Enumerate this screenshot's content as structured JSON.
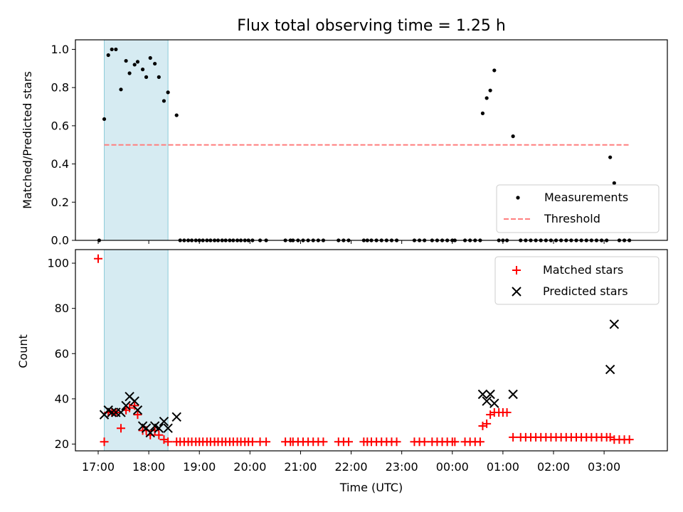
{
  "chart_data": [
    {
      "type": "scatter",
      "title": "Flux total observing time = 1.25 h",
      "ylabel": "Matched/Predicted stars",
      "xlabel": "",
      "ylim": [
        0,
        1.05
      ],
      "yticks": [
        "0.0",
        "0.2",
        "0.4",
        "0.6",
        "0.8",
        "1.0"
      ],
      "ytick_values": [
        0,
        0.2,
        0.4,
        0.6,
        0.8,
        1.0
      ],
      "highlight_span_hours": [
        17.12,
        18.38
      ],
      "threshold": {
        "name": "Threshold",
        "value": 0.5,
        "x_range": [
          17.12,
          27.5
        ],
        "color": "#ff7f7f"
      },
      "series": [
        {
          "name": "Measurements",
          "color": "#000000",
          "x": [
            17.02,
            17.12,
            17.2,
            17.27,
            17.35,
            17.45,
            17.55,
            17.62,
            17.72,
            17.78,
            17.88,
            17.95,
            18.03,
            18.12,
            18.2,
            18.3,
            18.38,
            18.55,
            18.62,
            18.7,
            18.78,
            18.85,
            18.93,
            19.0,
            19.07,
            19.15,
            19.22,
            19.3,
            19.37,
            19.45,
            19.52,
            19.6,
            19.67,
            19.75,
            19.82,
            19.9,
            19.97,
            20.05,
            20.2,
            20.32,
            20.7,
            20.8,
            20.85,
            20.95,
            21.05,
            21.15,
            21.25,
            21.35,
            21.45,
            21.75,
            21.85,
            21.95,
            22.25,
            22.32,
            22.4,
            22.5,
            22.6,
            22.7,
            22.8,
            22.9,
            23.25,
            23.35,
            23.45,
            23.6,
            23.7,
            23.8,
            23.9,
            24.0,
            24.05,
            24.25,
            24.35,
            24.45,
            24.55,
            24.6,
            24.68,
            24.75,
            24.83,
            24.92,
            25.0,
            25.08,
            25.2,
            25.35,
            25.45,
            25.55,
            25.65,
            25.75,
            25.85,
            25.95,
            26.05,
            26.15,
            26.25,
            26.35,
            26.45,
            26.55,
            26.65,
            26.75,
            26.85,
            26.95,
            27.05,
            27.12,
            27.2,
            27.3,
            27.4,
            27.5
          ],
          "y": [
            0,
            0.635,
            0.97,
            1.0,
            1.0,
            0.79,
            0.94,
            0.875,
            0.92,
            0.935,
            0.895,
            0.855,
            0.955,
            0.925,
            0.855,
            0.73,
            0.775,
            0.655,
            0,
            0,
            0,
            0,
            0,
            0,
            0,
            0,
            0,
            0,
            0,
            0,
            0,
            0,
            0,
            0,
            0,
            0,
            0,
            0,
            0,
            0,
            0,
            0,
            0,
            0,
            0,
            0,
            0,
            0,
            0,
            0,
            0,
            0,
            0,
            0,
            0,
            0,
            0,
            0,
            0,
            0,
            0,
            0,
            0,
            0,
            0,
            0,
            0,
            0,
            0,
            0,
            0,
            0,
            0,
            0.665,
            0.745,
            0.785,
            0.89,
            0,
            0,
            0,
            0.545,
            0,
            0,
            0,
            0,
            0,
            0,
            0,
            0,
            0,
            0,
            0,
            0,
            0,
            0,
            0,
            0,
            0,
            0,
            0.435,
            0.3,
            0,
            0,
            0
          ]
        }
      ]
    },
    {
      "type": "scatter",
      "title": "",
      "ylabel": "Count",
      "xlabel": "Time (UTC)",
      "ylim": [
        17,
        106
      ],
      "yticks": [
        "20",
        "40",
        "60",
        "80",
        "100"
      ],
      "ytick_values": [
        20,
        40,
        60,
        80,
        100
      ],
      "xlim_hours": [
        16.55,
        28.25
      ],
      "xticks": [
        "17:00",
        "18:00",
        "19:00",
        "20:00",
        "21:00",
        "22:00",
        "23:00",
        "00:00",
        "01:00",
        "02:00",
        "03:00"
      ],
      "xtick_values_hours": [
        17,
        18,
        19,
        20,
        21,
        22,
        23,
        24,
        25,
        26,
        27
      ],
      "highlight_span_hours": [
        17.12,
        18.38
      ],
      "series": [
        {
          "name": "Matched stars",
          "marker": "plus",
          "color": "#ff0000",
          "x": [
            17.0,
            17.12,
            17.2,
            17.27,
            17.35,
            17.45,
            17.55,
            17.62,
            17.72,
            17.78,
            17.88,
            17.95,
            18.03,
            18.12,
            18.2,
            18.3,
            18.38,
            18.55,
            18.62,
            18.7,
            18.78,
            18.85,
            18.93,
            19.0,
            19.07,
            19.15,
            19.22,
            19.3,
            19.37,
            19.45,
            19.52,
            19.6,
            19.67,
            19.75,
            19.82,
            19.9,
            19.97,
            20.05,
            20.2,
            20.32,
            20.7,
            20.8,
            20.85,
            20.95,
            21.05,
            21.15,
            21.25,
            21.35,
            21.45,
            21.75,
            21.85,
            21.95,
            22.25,
            22.32,
            22.4,
            22.5,
            22.6,
            22.7,
            22.8,
            22.9,
            23.25,
            23.35,
            23.45,
            23.6,
            23.7,
            23.8,
            23.9,
            24.0,
            24.05,
            24.25,
            24.35,
            24.45,
            24.55,
            24.6,
            24.68,
            24.75,
            24.83,
            24.92,
            25.0,
            25.08,
            25.2,
            25.35,
            25.45,
            25.55,
            25.65,
            25.75,
            25.85,
            25.95,
            26.05,
            26.15,
            26.25,
            26.35,
            26.45,
            26.55,
            26.65,
            26.75,
            26.85,
            26.95,
            27.05,
            27.12,
            27.2,
            27.3,
            27.4,
            27.5
          ],
          "y": [
            102,
            21,
            34,
            34,
            34,
            27,
            35,
            36,
            37,
            33,
            26,
            26,
            24,
            26,
            24,
            22,
            21,
            21,
            21,
            21,
            21,
            21,
            21,
            21,
            21,
            21,
            21,
            21,
            21,
            21,
            21,
            21,
            21,
            21,
            21,
            21,
            21,
            21,
            21,
            21,
            21,
            21,
            21,
            21,
            21,
            21,
            21,
            21,
            21,
            21,
            21,
            21,
            21,
            21,
            21,
            21,
            21,
            21,
            21,
            21,
            21,
            21,
            21,
            21,
            21,
            21,
            21,
            21,
            21,
            21,
            21,
            21,
            21,
            28,
            29,
            33,
            34,
            34,
            34,
            34,
            23,
            23,
            23,
            23,
            23,
            23,
            23,
            23,
            23,
            23,
            23,
            23,
            23,
            23,
            23,
            23,
            23,
            23,
            23,
            23,
            22,
            22,
            22,
            22
          ]
        },
        {
          "name": "Predicted stars",
          "marker": "x",
          "color": "#000000",
          "x": [
            17.12,
            17.2,
            17.27,
            17.35,
            17.45,
            17.55,
            17.62,
            17.72,
            17.78,
            17.88,
            17.95,
            18.03,
            18.12,
            18.2,
            18.3,
            18.38,
            18.55,
            24.6,
            24.68,
            24.75,
            24.83,
            25.2,
            27.12,
            27.2
          ],
          "y": [
            33,
            35,
            34,
            34,
            34,
            37,
            41,
            39,
            35,
            28,
            27,
            25,
            28,
            27,
            30,
            27,
            32,
            42,
            39,
            42,
            38,
            42,
            53,
            73
          ]
        }
      ]
    }
  ]
}
